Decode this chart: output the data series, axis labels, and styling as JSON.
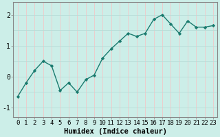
{
  "x": [
    0,
    1,
    2,
    3,
    4,
    5,
    6,
    7,
    8,
    9,
    10,
    11,
    12,
    13,
    14,
    15,
    16,
    17,
    18,
    19,
    20,
    21,
    22,
    23
  ],
  "y": [
    -0.65,
    -0.2,
    0.2,
    0.5,
    0.35,
    -0.45,
    -0.2,
    -0.5,
    -0.1,
    0.05,
    0.6,
    0.9,
    1.15,
    1.4,
    1.3,
    1.4,
    1.85,
    2.0,
    1.7,
    1.4,
    1.8,
    1.6,
    1.6,
    1.65
  ],
  "line_color": "#1a7a6e",
  "marker": "D",
  "marker_size": 2.2,
  "bg_color": "#cceee8",
  "plot_bg_color": "#cceee8",
  "grid_color_v": "#f0c8c8",
  "grid_color_h": "#b8ddd8",
  "xlabel": "Humidex (Indice chaleur)",
  "xlabel_fontsize": 7.5,
  "yticks": [
    -1,
    0,
    1,
    2
  ],
  "xtick_labels": [
    "0",
    "1",
    "2",
    "3",
    "4",
    "5",
    "6",
    "7",
    "8",
    "9",
    "10",
    "11",
    "12",
    "13",
    "14",
    "15",
    "16",
    "17",
    "18",
    "19",
    "20",
    "21",
    "22",
    "23"
  ],
  "ylim": [
    -1.3,
    2.4
  ],
  "xlim": [
    -0.5,
    23.5
  ],
  "tick_fontsize": 6.5,
  "line_width": 1.0,
  "spine_color": "#888888"
}
